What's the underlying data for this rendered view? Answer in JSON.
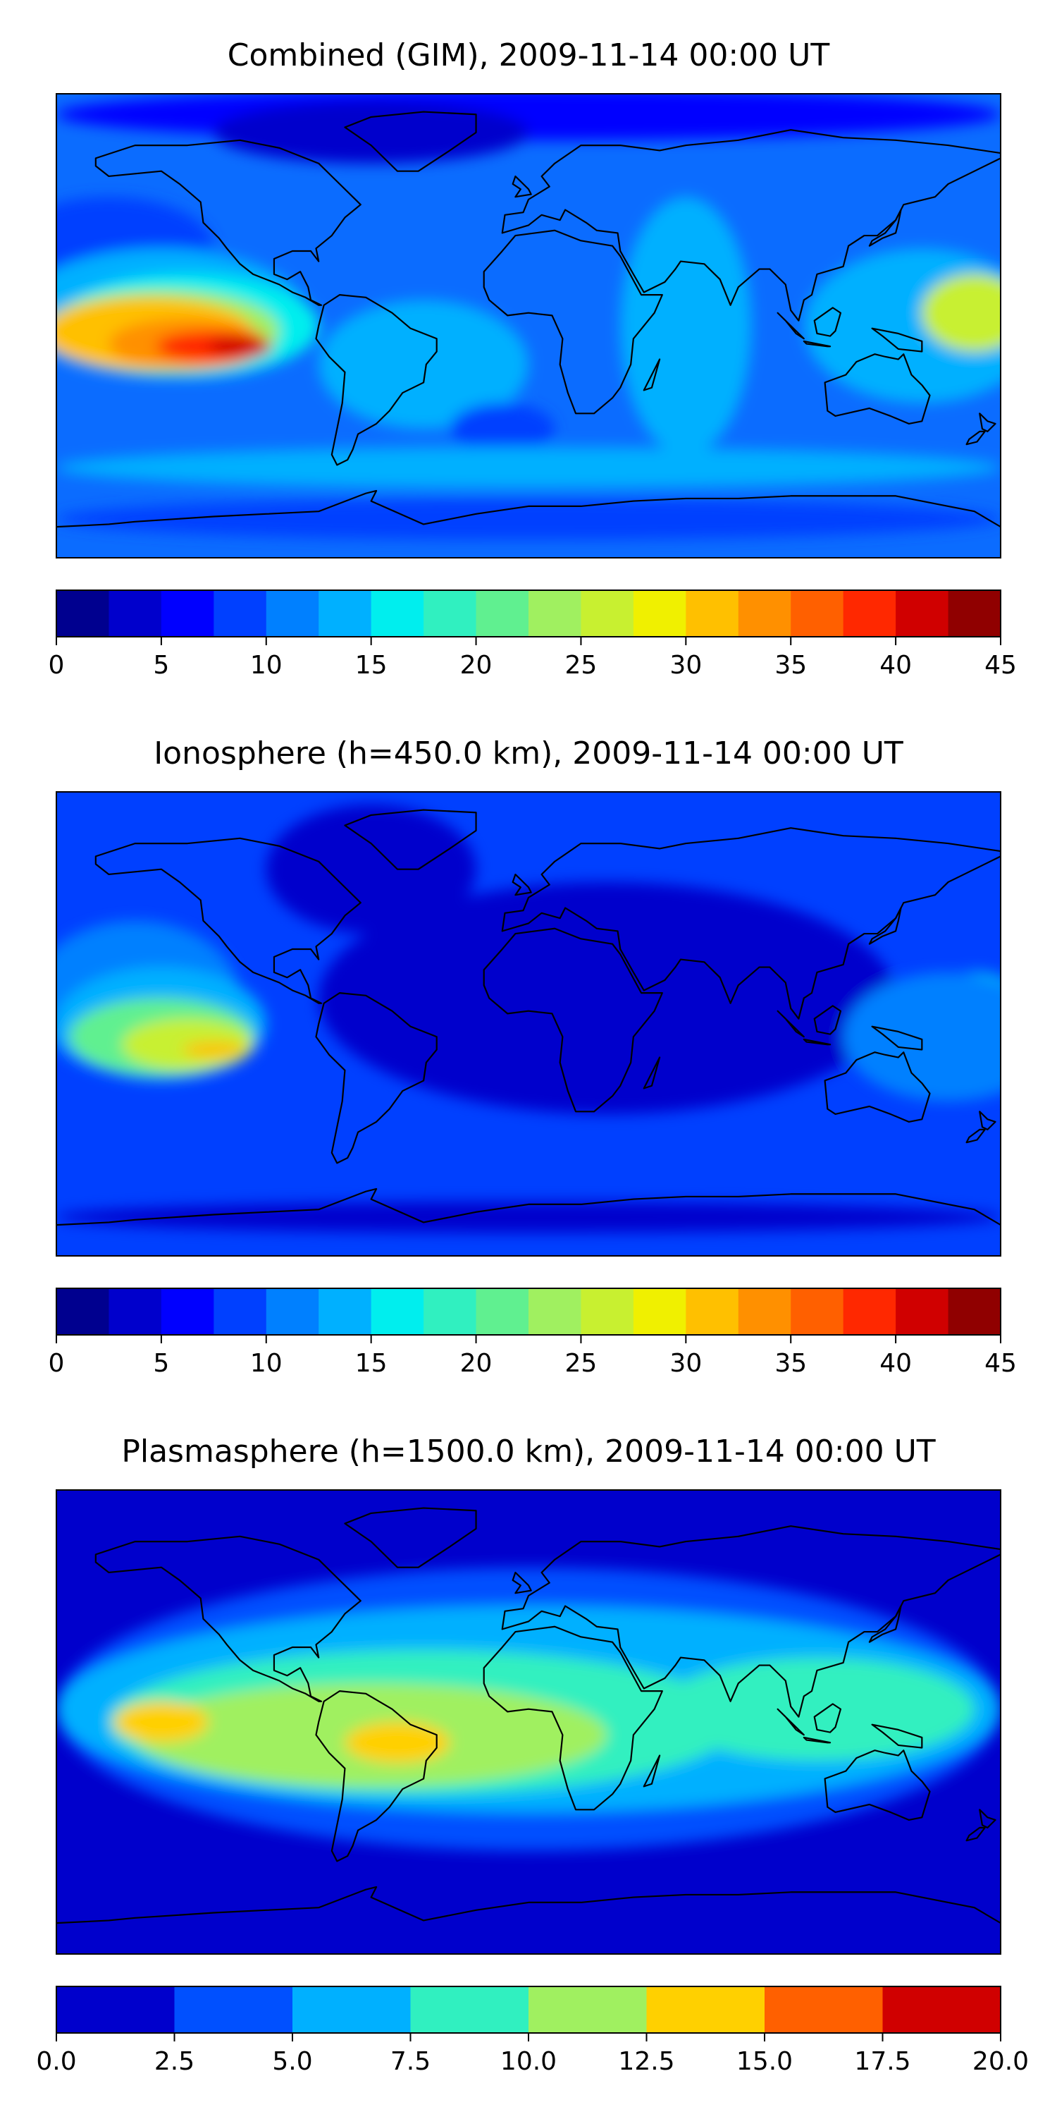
{
  "figure_background": "#ffffff",
  "panels": [
    {
      "id": "combined",
      "title": "Combined (GIM), 2009-11-14 00:00 UT",
      "colorbar": {
        "ticks": [
          "0",
          "5",
          "10",
          "15",
          "20",
          "25",
          "30",
          "35",
          "40",
          "45"
        ],
        "colors": [
          "#00008f",
          "#0000cc",
          "#0000ff",
          "#0040ff",
          "#0080ff",
          "#00b0ff",
          "#00eeee",
          "#30f0c0",
          "#60f090",
          "#a0f060",
          "#c8f030",
          "#f0f000",
          "#ffc000",
          "#ff9000",
          "#ff6000",
          "#ff2800",
          "#d00000",
          "#900000"
        ]
      },
      "field": {
        "background_color": "#0b6cff",
        "features": [
          {
            "color": "#0000ff",
            "lon": 0,
            "lat": 82,
            "rx": 180,
            "ry": 10
          },
          {
            "color": "#0000cc",
            "lon": -60,
            "lat": 75,
            "rx": 60,
            "ry": 12
          },
          {
            "color": "#0040ff",
            "lon": -160,
            "lat": 30,
            "rx": 40,
            "ry": 20
          },
          {
            "color": "#00b0ff",
            "lon": -140,
            "lat": 5,
            "rx": 55,
            "ry": 25
          },
          {
            "color": "#00eeee",
            "lon": -130,
            "lat": 0,
            "rx": 50,
            "ry": 20
          },
          {
            "color": "#a0f060",
            "lon": -140,
            "lat": -2,
            "rx": 45,
            "ry": 16
          },
          {
            "color": "#ffc000",
            "lon": -145,
            "lat": -3,
            "rx": 40,
            "ry": 14
          },
          {
            "color": "#ff9000",
            "lon": -130,
            "lat": -7,
            "rx": 30,
            "ry": 10
          },
          {
            "color": "#ff2800",
            "lon": -120,
            "lat": -8,
            "rx": 22,
            "ry": 6
          },
          {
            "color": "#d00000",
            "lon": -110,
            "lat": -8,
            "rx": 12,
            "ry": 4
          },
          {
            "color": "#00b0ff",
            "lon": -40,
            "lat": -15,
            "rx": 40,
            "ry": 25
          },
          {
            "color": "#00b0ff",
            "lon": 150,
            "lat": 0,
            "rx": 45,
            "ry": 30
          },
          {
            "color": "#c8f030",
            "lon": 170,
            "lat": 5,
            "rx": 20,
            "ry": 15
          },
          {
            "color": "#00b0ff",
            "lon": 60,
            "lat": 0,
            "rx": 25,
            "ry": 50
          },
          {
            "color": "#0040ff",
            "lon": -10,
            "lat": -40,
            "rx": 20,
            "ry": 10
          },
          {
            "color": "#00b0ff",
            "lon": 0,
            "lat": -55,
            "rx": 180,
            "ry": 8
          },
          {
            "color": "#0040ff",
            "lon": 0,
            "lat": -75,
            "rx": 180,
            "ry": 8
          }
        ]
      }
    },
    {
      "id": "ionosphere",
      "title": "Ionosphere  (h=450.0 km), 2009-11-14 00:00 UT",
      "colorbar": {
        "ticks": [
          "0",
          "5",
          "10",
          "15",
          "20",
          "25",
          "30",
          "35",
          "40",
          "45"
        ],
        "colors": [
          "#00008f",
          "#0000cc",
          "#0000ff",
          "#0040ff",
          "#0080ff",
          "#00b0ff",
          "#00eeee",
          "#30f0c0",
          "#60f090",
          "#a0f060",
          "#c8f030",
          "#f0f000",
          "#ffc000",
          "#ff9000",
          "#ff6000",
          "#ff2800",
          "#d00000",
          "#900000"
        ]
      },
      "field": {
        "background_color": "#0040ff",
        "features": [
          {
            "color": "#0000cc",
            "lon": 30,
            "lat": 10,
            "rx": 110,
            "ry": 45
          },
          {
            "color": "#0000cc",
            "lon": -60,
            "lat": 60,
            "rx": 40,
            "ry": 25
          },
          {
            "color": "#0000cc",
            "lon": 0,
            "lat": -75,
            "rx": 180,
            "ry": 6
          },
          {
            "color": "#0080ff",
            "lon": -150,
            "lat": 10,
            "rx": 40,
            "ry": 30
          },
          {
            "color": "#00b0ff",
            "lon": -140,
            "lat": 0,
            "rx": 40,
            "ry": 22
          },
          {
            "color": "#60f090",
            "lon": -140,
            "lat": -5,
            "rx": 35,
            "ry": 15
          },
          {
            "color": "#c8f030",
            "lon": -130,
            "lat": -8,
            "rx": 25,
            "ry": 10
          },
          {
            "color": "#ffc000",
            "lon": -120,
            "lat": -10,
            "rx": 12,
            "ry": 3
          },
          {
            "color": "#00eeee",
            "lon": 170,
            "lat": 5,
            "rx": 20,
            "ry": 15
          },
          {
            "color": "#0080ff",
            "lon": 160,
            "lat": -5,
            "rx": 40,
            "ry": 25
          }
        ]
      }
    },
    {
      "id": "plasmasphere",
      "title": "Plasmasphere (h=1500.0 km), 2009-11-14 00:00 UT",
      "colorbar": {
        "ticks": [
          "0.0",
          "2.5",
          "5.0",
          "7.5",
          "10.0",
          "12.5",
          "15.0",
          "17.5",
          "20.0"
        ],
        "colors": [
          "#0000cc",
          "#0050ff",
          "#00b0ff",
          "#30f0c0",
          "#a0f060",
          "#ffd000",
          "#ff6000",
          "#d00000"
        ]
      },
      "field": {
        "background_color": "#0000cc",
        "features": [
          {
            "color": "#0050ff",
            "lon": 0,
            "lat": 5,
            "rx": 180,
            "ry": 55
          },
          {
            "color": "#00b0ff",
            "lon": 0,
            "lat": 5,
            "rx": 180,
            "ry": 40
          },
          {
            "color": "#30f0c0",
            "lon": -40,
            "lat": 0,
            "rx": 120,
            "ry": 28
          },
          {
            "color": "#30f0c0",
            "lon": 110,
            "lat": 5,
            "rx": 60,
            "ry": 20
          },
          {
            "color": "#a0f060",
            "lon": -60,
            "lat": -5,
            "rx": 90,
            "ry": 20
          },
          {
            "color": "#ffd000",
            "lon": -140,
            "lat": 0,
            "rx": 18,
            "ry": 8
          },
          {
            "color": "#ffd000",
            "lon": -50,
            "lat": -8,
            "rx": 20,
            "ry": 8
          }
        ]
      }
    }
  ]
}
